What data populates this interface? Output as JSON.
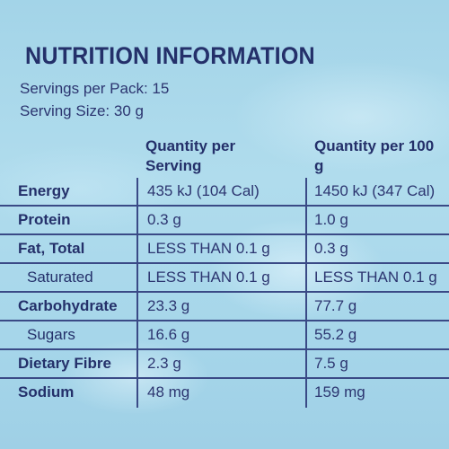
{
  "label": {
    "title": "NUTRITION INFORMATION",
    "servings_per_pack": "Servings per Pack: 15",
    "serving_size": "Serving Size: 30 g",
    "column_headers": [
      "Quantity per Serving",
      "Quantity per 100 g"
    ]
  },
  "rows": [
    {
      "name": "Energy",
      "per_serving": "435 kJ (104 Cal)",
      "per_100g": "1450 kJ (347 Cal)"
    },
    {
      "name": "Protein",
      "per_serving": "0.3 g",
      "per_100g": "1.0 g"
    },
    {
      "name": "Fat, Total",
      "per_serving": "LESS THAN 0.1 g",
      "per_100g": "0.3 g"
    },
    {
      "name": "Saturated",
      "per_serving": "LESS THAN 0.1 g",
      "per_100g": "LESS THAN 0.1 g"
    },
    {
      "name": "Carbohydrate",
      "per_serving": "23.3 g",
      "per_100g": "77.7 g"
    },
    {
      "name": "Sugars",
      "per_serving": "16.6 g",
      "per_100g": "55.2 g"
    },
    {
      "name": "Dietary Fibre",
      "per_serving": "2.3 g",
      "per_100g": "7.5 g"
    },
    {
      "name": "Sodium",
      "per_serving": "48 mg",
      "per_100g": "159 mg"
    }
  ],
  "colors": {
    "text": "#24306a",
    "background": "#a9d8ea"
  }
}
